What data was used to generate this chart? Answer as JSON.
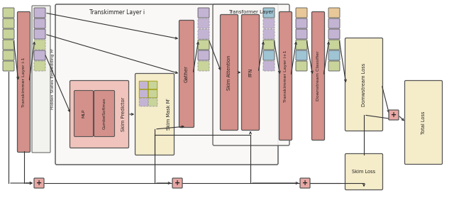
{
  "fig_width": 6.4,
  "fig_height": 2.79,
  "dpi": 100,
  "colors": {
    "pink_block": "#d4908a",
    "green_block": "#c8d49a",
    "purple_block": "#c4b4d4",
    "blue_block": "#9fc4d4",
    "orange_block": "#e8c898",
    "yellow_bg": "#f5ecca",
    "pink_bg": "#f0c4bc",
    "box_outline": "#f0e8e8",
    "outline": "#555555",
    "dashed_col": "#999999",
    "arrow_col": "#333333",
    "plus_fill": "#e8a8a4",
    "white": "#ffffff"
  },
  "labels": {
    "ti": "Transkimmer Layer i",
    "tl": "Transformer Layer",
    "prev": "Transkimmer Layer i-1",
    "next": "Transkimmer Layer i+1",
    "hs": "Hidden States Embedding Hⁱ",
    "sp": "Skim Predictor",
    "mlp": "MLP",
    "gs": "GumbelSoftmax",
    "sm": "Skim Mask Mⁱ",
    "ga": "Gather",
    "sa": "Skim Attention",
    "ffn": "FFN",
    "dc": "Downstream Classifier",
    "dl": "Domwstream Loss",
    "tl_label": "Total Loss",
    "sl": "Skim Loss"
  }
}
